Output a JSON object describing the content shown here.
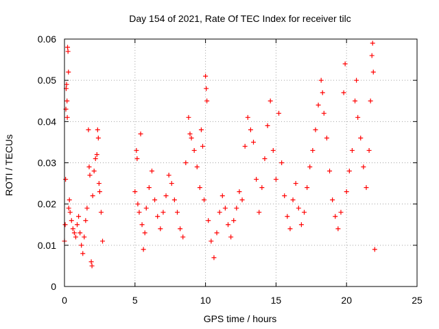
{
  "chart_data": {
    "type": "scatter",
    "title": "Day 154 of 2021, Rate Of TEC Index for receiver tilc",
    "xlabel": "GPS time / hours",
    "ylabel": "ROTI / TECUs",
    "xlim": [
      0,
      25
    ],
    "ylim": [
      0,
      0.06
    ],
    "x_ticks": [
      0,
      5,
      10,
      15,
      20,
      25
    ],
    "x_tick_labels": [
      "0",
      "5",
      "10",
      "15",
      "20",
      "25"
    ],
    "y_ticks": [
      0,
      0.01,
      0.02,
      0.03,
      0.04,
      0.05,
      0.06
    ],
    "y_tick_labels": [
      "0",
      "0.01",
      "0.02",
      "0.03",
      "0.04",
      "0.05",
      "0.06"
    ],
    "grid": true,
    "marker": "plus",
    "series": [
      {
        "name": "ROTI",
        "color": "#ff0000",
        "points": [
          [
            0.0,
            0.011
          ],
          [
            0.05,
            0.015
          ],
          [
            0.08,
            0.026
          ],
          [
            0.1,
            0.043
          ],
          [
            0.12,
            0.048
          ],
          [
            0.15,
            0.049
          ],
          [
            0.18,
            0.045
          ],
          [
            0.2,
            0.041
          ],
          [
            0.22,
            0.058
          ],
          [
            0.25,
            0.057
          ],
          [
            0.28,
            0.052
          ],
          [
            0.3,
            0.019
          ],
          [
            0.35,
            0.021
          ],
          [
            0.4,
            0.018
          ],
          [
            0.5,
            0.016
          ],
          [
            0.6,
            0.014
          ],
          [
            0.7,
            0.013
          ],
          [
            0.8,
            0.012
          ],
          [
            0.9,
            0.015
          ],
          [
            1.0,
            0.017
          ],
          [
            1.1,
            0.013
          ],
          [
            1.2,
            0.01
          ],
          [
            1.3,
            0.008
          ],
          [
            1.4,
            0.012
          ],
          [
            1.5,
            0.016
          ],
          [
            1.6,
            0.019
          ],
          [
            1.7,
            0.038
          ],
          [
            1.75,
            0.029
          ],
          [
            1.8,
            0.027
          ],
          [
            1.9,
            0.006
          ],
          [
            1.95,
            0.005
          ],
          [
            2.0,
            0.022
          ],
          [
            2.1,
            0.028
          ],
          [
            2.2,
            0.031
          ],
          [
            2.3,
            0.032
          ],
          [
            2.35,
            0.038
          ],
          [
            2.4,
            0.036
          ],
          [
            2.45,
            0.025
          ],
          [
            2.5,
            0.023
          ],
          [
            2.6,
            0.018
          ],
          [
            2.7,
            0.011
          ],
          [
            5.0,
            0.023
          ],
          [
            5.1,
            0.033
          ],
          [
            5.15,
            0.031
          ],
          [
            5.2,
            0.02
          ],
          [
            5.3,
            0.018
          ],
          [
            5.4,
            0.037
          ],
          [
            5.5,
            0.015
          ],
          [
            5.6,
            0.009
          ],
          [
            5.7,
            0.013
          ],
          [
            5.8,
            0.019
          ],
          [
            6.0,
            0.024
          ],
          [
            6.2,
            0.028
          ],
          [
            6.4,
            0.021
          ],
          [
            6.6,
            0.017
          ],
          [
            6.8,
            0.014
          ],
          [
            7.0,
            0.018
          ],
          [
            7.2,
            0.022
          ],
          [
            7.4,
            0.027
          ],
          [
            7.6,
            0.025
          ],
          [
            7.8,
            0.021
          ],
          [
            8.0,
            0.018
          ],
          [
            8.2,
            0.014
          ],
          [
            8.4,
            0.012
          ],
          [
            8.6,
            0.03
          ],
          [
            8.8,
            0.041
          ],
          [
            8.9,
            0.037
          ],
          [
            9.0,
            0.036
          ],
          [
            9.2,
            0.033
          ],
          [
            9.4,
            0.029
          ],
          [
            9.6,
            0.024
          ],
          [
            9.7,
            0.038
          ],
          [
            9.8,
            0.034
          ],
          [
            9.9,
            0.021
          ],
          [
            10.0,
            0.051
          ],
          [
            10.05,
            0.048
          ],
          [
            10.1,
            0.045
          ],
          [
            10.2,
            0.016
          ],
          [
            10.4,
            0.011
          ],
          [
            10.6,
            0.007
          ],
          [
            10.8,
            0.013
          ],
          [
            11.0,
            0.018
          ],
          [
            11.2,
            0.022
          ],
          [
            11.4,
            0.019
          ],
          [
            11.6,
            0.015
          ],
          [
            11.8,
            0.012
          ],
          [
            12.0,
            0.016
          ],
          [
            12.2,
            0.019
          ],
          [
            12.4,
            0.023
          ],
          [
            12.6,
            0.021
          ],
          [
            12.8,
            0.034
          ],
          [
            13.0,
            0.041
          ],
          [
            13.2,
            0.038
          ],
          [
            13.4,
            0.035
          ],
          [
            13.6,
            0.026
          ],
          [
            13.8,
            0.018
          ],
          [
            14.0,
            0.024
          ],
          [
            14.2,
            0.031
          ],
          [
            14.4,
            0.039
          ],
          [
            14.6,
            0.045
          ],
          [
            14.8,
            0.033
          ],
          [
            15.0,
            0.026
          ],
          [
            15.2,
            0.042
          ],
          [
            15.4,
            0.03
          ],
          [
            15.6,
            0.022
          ],
          [
            15.8,
            0.017
          ],
          [
            16.0,
            0.014
          ],
          [
            16.2,
            0.021
          ],
          [
            16.4,
            0.025
          ],
          [
            16.6,
            0.019
          ],
          [
            16.8,
            0.015
          ],
          [
            17.0,
            0.018
          ],
          [
            17.2,
            0.024
          ],
          [
            17.4,
            0.029
          ],
          [
            17.6,
            0.033
          ],
          [
            17.8,
            0.038
          ],
          [
            18.0,
            0.044
          ],
          [
            18.2,
            0.05
          ],
          [
            18.3,
            0.047
          ],
          [
            18.4,
            0.042
          ],
          [
            18.6,
            0.036
          ],
          [
            18.8,
            0.028
          ],
          [
            19.0,
            0.021
          ],
          [
            19.2,
            0.017
          ],
          [
            19.4,
            0.014
          ],
          [
            19.6,
            0.018
          ],
          [
            19.8,
            0.047
          ],
          [
            19.9,
            0.054
          ],
          [
            20.0,
            0.023
          ],
          [
            20.2,
            0.028
          ],
          [
            20.4,
            0.033
          ],
          [
            20.6,
            0.045
          ],
          [
            20.7,
            0.05
          ],
          [
            20.8,
            0.041
          ],
          [
            21.0,
            0.036
          ],
          [
            21.2,
            0.029
          ],
          [
            21.4,
            0.024
          ],
          [
            21.6,
            0.033
          ],
          [
            21.7,
            0.045
          ],
          [
            21.8,
            0.056
          ],
          [
            21.85,
            0.059
          ],
          [
            21.9,
            0.052
          ],
          [
            22.0,
            0.009
          ]
        ]
      }
    ]
  }
}
